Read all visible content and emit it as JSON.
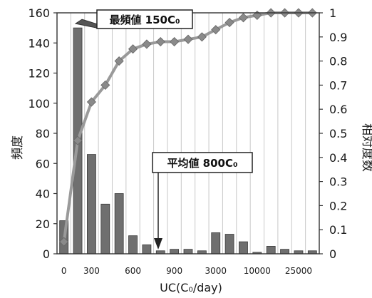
{
  "chart_data": {
    "type": "bar",
    "categories": [
      "0",
      "",
      "300",
      "",
      "",
      "600",
      "",
      "",
      "900",
      "",
      "",
      "3000",
      "",
      "",
      "10000",
      "",
      "",
      "25000",
      ""
    ],
    "x_tick_labels": [
      "0",
      "300",
      "600",
      "900",
      "3000",
      "10000",
      "25000"
    ],
    "values": [
      22,
      150,
      66,
      33,
      40,
      12,
      6,
      2,
      3,
      3,
      2,
      14,
      13,
      8,
      1,
      5,
      3,
      2,
      2
    ],
    "cumulative": [
      0.05,
      0.47,
      0.63,
      0.7,
      0.8,
      0.85,
      0.87,
      0.88,
      0.88,
      0.89,
      0.9,
      0.93,
      0.96,
      0.98,
      0.99,
      1.0,
      1.0,
      1.0,
      1.0
    ],
    "y_left": {
      "label": "頻度",
      "ylim": [
        0,
        160
      ],
      "ticks": [
        0,
        20,
        40,
        60,
        80,
        100,
        120,
        140,
        160
      ]
    },
    "y_right": {
      "label": "相対度数",
      "ylim": [
        0,
        1
      ],
      "ticks": [
        "0",
        "0.1",
        "0.2",
        "0.3",
        "0.4",
        "0.5",
        "0.6",
        "0.7",
        "0.8",
        "0.9",
        "1"
      ]
    },
    "xlabel": "UC(C₀/day)",
    "annotations": [
      {
        "text": "最頻値 150C₀",
        "target_category_index": 1
      },
      {
        "text": "平均値 800C₀",
        "target_x_value": 800
      }
    ],
    "grid": "vertical",
    "colors": {
      "bar": "#6f6f6f",
      "line": "#9a9a9a",
      "marker": "#8a8a8a",
      "grid": "#c8c8c8",
      "axis": "#333333"
    }
  }
}
